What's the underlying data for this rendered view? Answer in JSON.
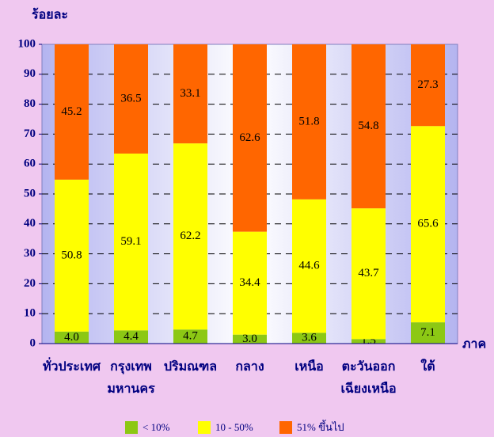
{
  "chart_data": {
    "type": "stacked_bar",
    "y_label": "ร้อยละ",
    "x_label": "ภาค",
    "categories": [
      "ทั่วประเทศ",
      "กรุงเทพ\nมหานคร",
      "ปริมณฑล",
      "กลาง",
      "เหนือ",
      "ตะวันออก\nเฉียงเหนือ",
      "ใต้"
    ],
    "series": [
      {
        "name": "< 10%",
        "color": "#8cc814",
        "values": [
          4.0,
          4.4,
          4.7,
          3.0,
          3.6,
          1.5,
          7.1
        ],
        "value_labels": [
          "4.0",
          "4.4",
          "4.7",
          "3.0",
          "3.6",
          "1.5",
          "7.1"
        ]
      },
      {
        "name": "10 - 50%",
        "color": "#ffff00",
        "values": [
          50.8,
          59.1,
          62.2,
          34.4,
          44.6,
          43.7,
          65.6
        ]
      },
      {
        "name": "51% ขึ้นไป",
        "color": "#ff6600",
        "values": [
          45.2,
          36.5,
          33.1,
          62.6,
          51.8,
          54.8,
          27.3
        ]
      }
    ],
    "ylim": [
      0,
      100
    ],
    "yticks": [
      0,
      10,
      20,
      30,
      40,
      50,
      60,
      70,
      80,
      90,
      100
    ],
    "grid": true
  }
}
